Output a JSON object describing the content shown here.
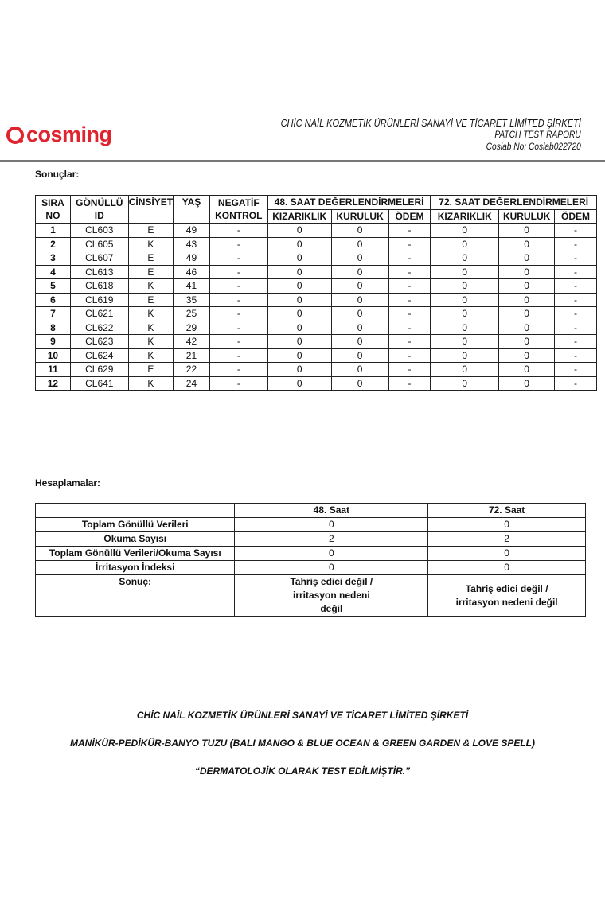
{
  "header": {
    "logo": "cosming",
    "company": "CHİC NAİL KOZMETİK ÜRÜNLERİ SANAYİ VE TİCARET LİMİTED ŞİRKETİ",
    "report": "PATCH TEST RAPORU",
    "coslab": "Coslab No: Coslab022720"
  },
  "results": {
    "label": "Sonuçlar:",
    "headers": {
      "sira": "SIRA NO",
      "gonullu": "GÖNÜLLÜ ID",
      "cinsiyet": "CİNSİYET",
      "yas": "YAŞ",
      "negatif": "NEGATİF KONTROL",
      "h48": "48. SAAT DEĞERLENDİRMELERİ",
      "h72": "72. SAAT DEĞERLENDİRMELERİ",
      "kizariklik": "KIZARIKLIK",
      "kuruluk": "KURULUK",
      "odem": "ÖDEM"
    },
    "rows": [
      [
        "1",
        "CL603",
        "E",
        "49",
        "-",
        "0",
        "0",
        "-",
        "0",
        "0",
        "-"
      ],
      [
        "2",
        "CL605",
        "K",
        "43",
        "-",
        "0",
        "0",
        "-",
        "0",
        "0",
        "-"
      ],
      [
        "3",
        "CL607",
        "E",
        "49",
        "-",
        "0",
        "0",
        "-",
        "0",
        "0",
        "-"
      ],
      [
        "4",
        "CL613",
        "E",
        "46",
        "-",
        "0",
        "0",
        "-",
        "0",
        "0",
        "-"
      ],
      [
        "5",
        "CL618",
        "K",
        "41",
        "-",
        "0",
        "0",
        "-",
        "0",
        "0",
        "-"
      ],
      [
        "6",
        "CL619",
        "E",
        "35",
        "-",
        "0",
        "0",
        "-",
        "0",
        "0",
        "-"
      ],
      [
        "7",
        "CL621",
        "K",
        "25",
        "-",
        "0",
        "0",
        "-",
        "0",
        "0",
        "-"
      ],
      [
        "8",
        "CL622",
        "K",
        "29",
        "-",
        "0",
        "0",
        "-",
        "0",
        "0",
        "-"
      ],
      [
        "9",
        "CL623",
        "K",
        "42",
        "-",
        "0",
        "0",
        "-",
        "0",
        "0",
        "-"
      ],
      [
        "10",
        "CL624",
        "K",
        "21",
        "-",
        "0",
        "0",
        "-",
        "0",
        "0",
        "-"
      ],
      [
        "11",
        "CL629",
        "E",
        "22",
        "-",
        "0",
        "0",
        "-",
        "0",
        "0",
        "-"
      ],
      [
        "12",
        "CL641",
        "K",
        "24",
        "-",
        "0",
        "0",
        "-",
        "0",
        "0",
        "-"
      ]
    ]
  },
  "calc": {
    "label": "Hesaplamalar:",
    "cols": [
      "48. Saat",
      "72. Saat"
    ],
    "rows": [
      {
        "name": "Toplam Gönüllü Verileri",
        "v48": "0",
        "v72": "0"
      },
      {
        "name": "Okuma Sayısı",
        "v48": "2",
        "v72": "2"
      },
      {
        "name": "Toplam Gönüllü Verileri/Okuma Sayısı",
        "v48": "0",
        "v72": "0"
      },
      {
        "name": "İrritasyon İndeksi",
        "v48": "0",
        "v72": "0"
      }
    ],
    "result": {
      "name": "Sonuç:",
      "v48": "Tahriş edici değil / irritasyon nedeni değil",
      "v72": "Tahriş edici değil / irritasyon nedeni değil"
    }
  },
  "footer": {
    "company": "CHİC NAİL KOZMETİK ÜRÜNLERİ SANAYİ VE TİCARET LİMİTED ŞİRKETİ",
    "product": "MANİKÜR-PEDİKÜR-BANYO TUZU (BALI MANGO & BLUE OCEAN & GREEN GARDEN & LOVE SPELL)",
    "claim": "“DERMATOLOJİK OLARAK TEST EDİLMİŞTİR.”"
  }
}
